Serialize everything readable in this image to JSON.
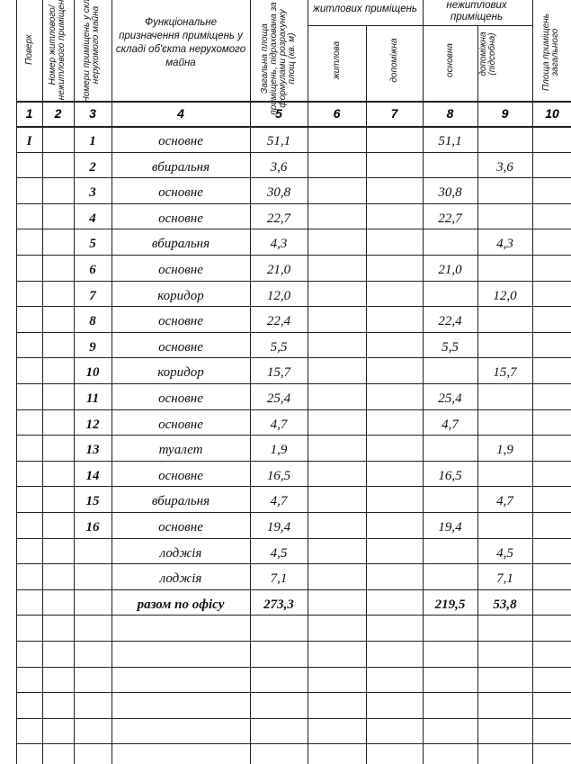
{
  "headers": {
    "c1": "Поверх",
    "c2": "Номер житлового/ нежитлового приміщення",
    "c3": "Номери приміщень у складі нерухомого майна",
    "c4": "Функціональне призначення приміщень у складі об'єкта нерухомого майна",
    "c5": "Загальна площа приміщень, підрахована за формулами розрахунку площ (кв. м)",
    "g1": "житлових приміщень",
    "g2": "нежитлових приміщень",
    "c6": "житлова",
    "c7": "допоміжна",
    "c8": "основна",
    "c9": "допоміжна (підсобна)",
    "c10": "Площа приміщень загального"
  },
  "column_numbers": [
    "1",
    "2",
    "3",
    "4",
    "5",
    "6",
    "7",
    "8",
    "9",
    "10"
  ],
  "rows": [
    {
      "floor": "I",
      "no": "1",
      "purpose": "основне",
      "total": "51,1",
      "main": "51,1",
      "aux": ""
    },
    {
      "floor": "",
      "no": "2",
      "purpose": "вбиральня",
      "total": "3,6",
      "main": "",
      "aux": "3,6"
    },
    {
      "floor": "",
      "no": "3",
      "purpose": "основне",
      "total": "30,8",
      "main": "30,8",
      "aux": ""
    },
    {
      "floor": "",
      "no": "4",
      "purpose": "основне",
      "total": "22,7",
      "main": "22,7",
      "aux": ""
    },
    {
      "floor": "",
      "no": "5",
      "purpose": "вбиральня",
      "total": "4,3",
      "main": "",
      "aux": "4,3"
    },
    {
      "floor": "",
      "no": "6",
      "purpose": "основне",
      "total": "21,0",
      "main": "21,0",
      "aux": ""
    },
    {
      "floor": "",
      "no": "7",
      "purpose": "коридор",
      "total": "12,0",
      "main": "",
      "aux": "12,0"
    },
    {
      "floor": "",
      "no": "8",
      "purpose": "основне",
      "total": "22,4",
      "main": "22,4",
      "aux": ""
    },
    {
      "floor": "",
      "no": "9",
      "purpose": "основне",
      "total": "5,5",
      "main": "5,5",
      "aux": ""
    },
    {
      "floor": "",
      "no": "10",
      "purpose": "коридор",
      "total": "15,7",
      "main": "",
      "aux": "15,7"
    },
    {
      "floor": "",
      "no": "11",
      "purpose": "основне",
      "total": "25,4",
      "main": "25,4",
      "aux": ""
    },
    {
      "floor": "",
      "no": "12",
      "purpose": "основне",
      "total": "4,7",
      "main": "4,7",
      "aux": ""
    },
    {
      "floor": "",
      "no": "13",
      "purpose": "туалет",
      "total": "1,9",
      "main": "",
      "aux": "1,9"
    },
    {
      "floor": "",
      "no": "14",
      "purpose": "основне",
      "total": "16,5",
      "main": "16,5",
      "aux": ""
    },
    {
      "floor": "",
      "no": "15",
      "purpose": "вбиральня",
      "total": "4,7",
      "main": "",
      "aux": "4,7"
    },
    {
      "floor": "",
      "no": "16",
      "purpose": "основне",
      "total": "19,4",
      "main": "19,4",
      "aux": ""
    },
    {
      "floor": "",
      "no": "",
      "purpose": "лоджія",
      "total": "4,5",
      "main": "",
      "aux": "4,5"
    },
    {
      "floor": "",
      "no": "",
      "purpose": "лоджія",
      "total": "7,1",
      "main": "",
      "aux": "7,1"
    }
  ],
  "total_row": {
    "label": "разом по офісу",
    "total": "273,3",
    "main": "219,5",
    "aux": "53,8"
  }
}
